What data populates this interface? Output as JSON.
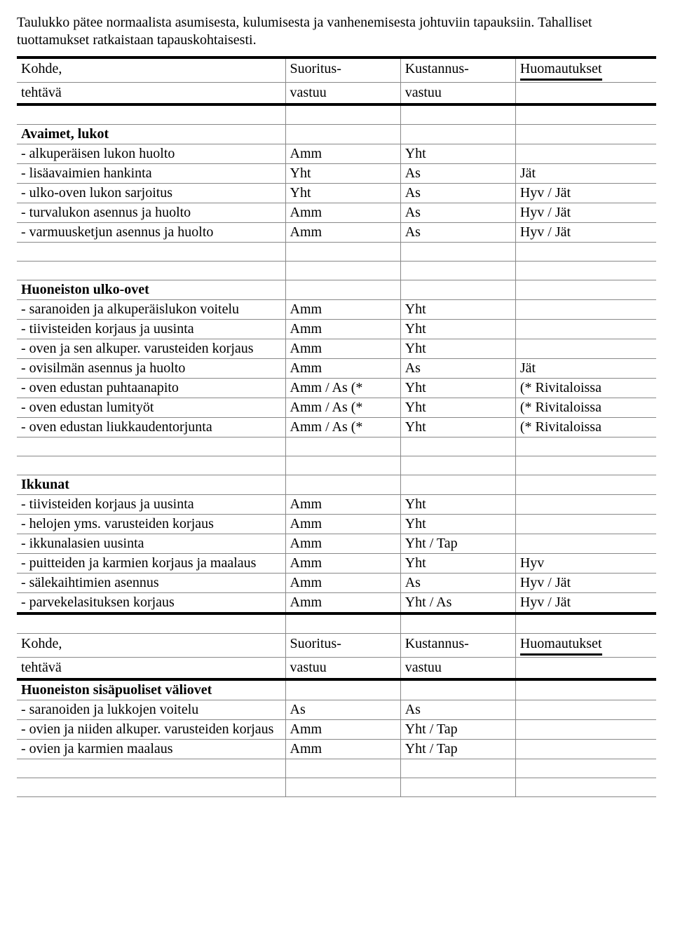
{
  "intro": "Taulukko pätee normaalista asumisesta, kulumisesta ja vanhenemisesta johtuviin tapauksiin. Tahalliset tuottamukset ratkaistaan tapauskohtaisesti.",
  "hdr": {
    "col1a": "Kohde,",
    "col1b": "tehtävä",
    "col2a": "Suoritus-",
    "col2b": "vastuu",
    "col3a": "Kustannus-",
    "col3b": "vastuu",
    "col4": "Huomautukset"
  },
  "s1": {
    "title": "Avaimet, lukot",
    "r1": {
      "a": "- alkuperäisen lukon huolto",
      "b": "Amm",
      "c": "Yht",
      "d": ""
    },
    "r2": {
      "a": "- lisäavaimien hankinta",
      "b": "Yht",
      "c": "As",
      "d": "Jät"
    },
    "r3": {
      "a": "- ulko-oven lukon sarjoitus",
      "b": "Yht",
      "c": "As",
      "d": "Hyv / Jät"
    },
    "r4": {
      "a": "- turvalukon asennus ja huolto",
      "b": "Amm",
      "c": "As",
      "d": "Hyv / Jät"
    },
    "r5": {
      "a": "- varmuusketjun asennus ja huolto",
      "b": "Amm",
      "c": "As",
      "d": "Hyv / Jät"
    }
  },
  "s2": {
    "title": "Huoneiston ulko-ovet",
    "r1": {
      "a": "- saranoiden ja alkuperäislukon voitelu",
      "b": "Amm",
      "c": "Yht",
      "d": ""
    },
    "r2": {
      "a": "- tiivisteiden korjaus ja uusinta",
      "b": "Amm",
      "c": "Yht",
      "d": ""
    },
    "r3": {
      "a": "- oven ja sen alkuper. varusteiden korjaus",
      "b": "Amm",
      "c": "Yht",
      "d": ""
    },
    "r4": {
      "a": "- ovisilmän asennus ja huolto",
      "b": "Amm",
      "c": "As",
      "d": "Jät"
    },
    "r5": {
      "a": "- oven edustan puhtaanapito",
      "b": "Amm / As (*",
      "c": "Yht",
      "d": "(* Rivitaloissa"
    },
    "r6": {
      "a": "- oven edustan lumityöt",
      "b": "Amm / As (*",
      "c": "Yht",
      "d": "(* Rivitaloissa"
    },
    "r7": {
      "a": "- oven edustan liukkaudentorjunta",
      "b": "Amm / As (*",
      "c": "Yht",
      "d": "(* Rivitaloissa"
    }
  },
  "s3": {
    "title": "Ikkunat",
    "r1": {
      "a": "- tiivisteiden korjaus ja uusinta",
      "b": "Amm",
      "c": "Yht",
      "d": ""
    },
    "r2": {
      "a": "- helojen yms. varusteiden korjaus",
      "b": "Amm",
      "c": "Yht",
      "d": ""
    },
    "r3": {
      "a": "- ikkunalasien uusinta",
      "b": "Amm",
      "c": "Yht / Tap",
      "d": ""
    },
    "r4": {
      "a": "- puitteiden ja karmien korjaus ja maalaus",
      "b": "Amm",
      "c": "Yht",
      "d": "Hyv"
    },
    "r5": {
      "a": "- sälekaihtimien asennus",
      "b": "Amm",
      "c": "As",
      "d": "Hyv / Jät"
    },
    "r6": {
      "a": "- parvekelasituksen korjaus",
      "b": "Amm",
      "c": "Yht / As",
      "d": "Hyv / Jät"
    }
  },
  "s4": {
    "title": "Huoneiston sisäpuoliset väliovet",
    "r1": {
      "a": "- saranoiden ja lukkojen voitelu",
      "b": "As",
      "c": "As",
      "d": ""
    },
    "r2": {
      "a": "- ovien ja niiden alkuper. varusteiden korjaus",
      "b": "Amm",
      "c": "Yht / Tap",
      "d": ""
    },
    "r3": {
      "a": "- ovien ja karmien maalaus",
      "b": "Amm",
      "c": "Yht / Tap",
      "d": ""
    }
  }
}
